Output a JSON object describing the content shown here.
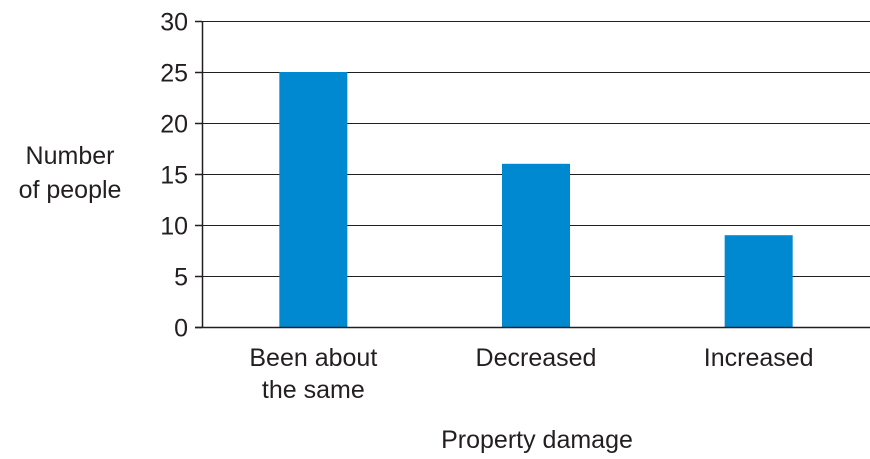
{
  "chart_data": {
    "type": "bar",
    "title": "",
    "xlabel": "Property damage",
    "ylabel_lines": [
      "Number",
      "of people"
    ],
    "categories": [
      [
        "Been about",
        "the same"
      ],
      [
        "Decreased"
      ],
      [
        "Increased"
      ]
    ],
    "values": [
      25,
      16,
      9
    ],
    "ylim": [
      0,
      30
    ],
    "yticks": [
      0,
      5,
      10,
      15,
      20,
      25,
      30
    ],
    "grid": true,
    "bar_color": "#0088d1",
    "axis_color": "#231f20"
  }
}
